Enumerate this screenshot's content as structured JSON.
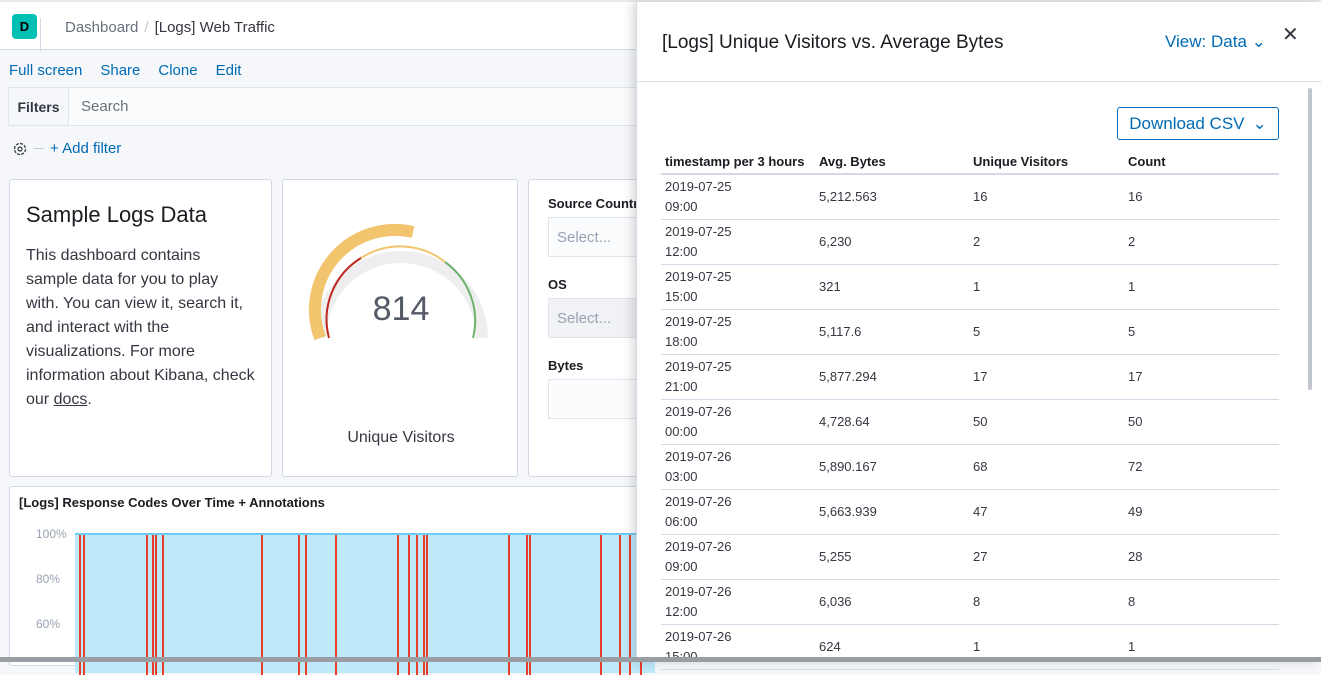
{
  "header": {
    "logo_letter": "D",
    "breadcrumbs": [
      "Dashboard",
      "[Logs] Web Traffic"
    ]
  },
  "menu": [
    "Full screen",
    "Share",
    "Clone",
    "Edit"
  ],
  "filters": {
    "label": "Filters",
    "search_placeholder": "Search",
    "add_filter": "+ Add filter"
  },
  "markdown": {
    "title": "Sample Logs Data",
    "body": "This dashboard contains sample data for you to play with. You can view it, search it, and interact with the visualizations. For more information about Kibana, check our ",
    "link": "docs",
    "end": "."
  },
  "gauge": {
    "value": "814",
    "label": "Unique Visitors",
    "colors": {
      "red": "#bd271e",
      "yellow": "#f2c46d",
      "green": "#6db36d",
      "track": "#eeeeee"
    }
  },
  "controls": [
    {
      "label": "Source Country",
      "placeholder": "Select..."
    },
    {
      "label": "OS",
      "placeholder": "Select..."
    },
    {
      "label": "Bytes",
      "placeholder": ""
    }
  ],
  "chart": {
    "title": "[Logs] Response Codes Over Time + Annotations",
    "yticks": [
      "100%",
      "80%",
      "60%"
    ],
    "fill": "#bde9fb",
    "annotation_color": "#e7402a"
  },
  "flyout": {
    "title": "[Logs] Unique Visitors vs. Average Bytes",
    "view": "View: Data",
    "download": "Download CSV",
    "columns": [
      "timestamp per 3 hours",
      "Avg. Bytes",
      "Unique Visitors",
      "Count"
    ],
    "rows": [
      [
        "2019-07-25",
        "09:00",
        "5,212.563",
        "16",
        "16"
      ],
      [
        "2019-07-25",
        "12:00",
        "6,230",
        "2",
        "2"
      ],
      [
        "2019-07-25",
        "15:00",
        "321",
        "1",
        "1"
      ],
      [
        "2019-07-25",
        "18:00",
        "5,117.6",
        "5",
        "5"
      ],
      [
        "2019-07-25",
        "21:00",
        "5,877.294",
        "17",
        "17"
      ],
      [
        "2019-07-26",
        "00:00",
        "4,728.64",
        "50",
        "50"
      ],
      [
        "2019-07-26",
        "03:00",
        "5,890.167",
        "68",
        "72"
      ],
      [
        "2019-07-26",
        "06:00",
        "5,663.939",
        "47",
        "49"
      ],
      [
        "2019-07-26",
        "09:00",
        "5,255",
        "27",
        "28"
      ],
      [
        "2019-07-26",
        "12:00",
        "6,036",
        "8",
        "8"
      ],
      [
        "2019-07-26",
        "15:00",
        "624",
        "1",
        "1"
      ]
    ]
  }
}
